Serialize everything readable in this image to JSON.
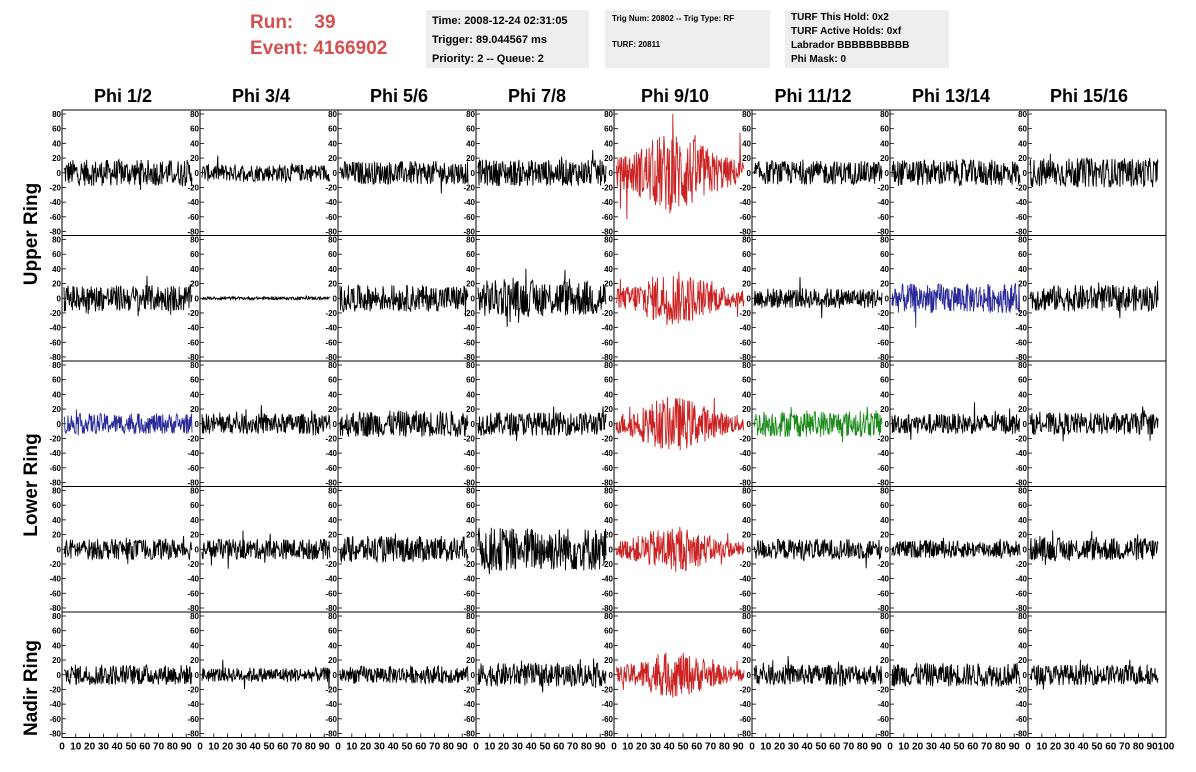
{
  "run": {
    "run_label": "Run:",
    "run_value": "39",
    "event_label": "Event:",
    "event_value": "4166902"
  },
  "info1": {
    "time": "Time: 2008-12-24 02:31:05",
    "trigger": "Trigger: 89.044567 ms",
    "priority": "Priority: 2 -- Queue: 2"
  },
  "info2": {
    "trig": "Trig Num: 20802 -- Trig Type: RF",
    "turf": "TURF: 20811"
  },
  "info3": {
    "hold": "TURF This Hold: 0x2",
    "active": "TURF Active Holds: 0xf",
    "labrador": "Labrador BBBBBBBBBB",
    "mask": "Phi Mask: 0"
  },
  "columns": [
    "Phi 1/2",
    "Phi 3/4",
    "Phi 5/6",
    "Phi 7/8",
    "Phi 9/10",
    "Phi 11/12",
    "Phi 13/14",
    "Phi 15/16"
  ],
  "rings": [
    "Upper Ring",
    "Lower Ring",
    "Nadir Ring"
  ],
  "y_ticks": [
    "80",
    "60",
    "40",
    "20",
    "0",
    "-20",
    "-40",
    "-60",
    "-80"
  ],
  "x_ticks": [
    "0",
    "10",
    "20",
    "30",
    "40",
    "50",
    "60",
    "70",
    "80",
    "90",
    "100"
  ],
  "colors": {
    "default": "#000000",
    "red": "#cc2222",
    "blue": "#2a2a9a",
    "green": "#1a8a1a",
    "accent": "#d65050"
  },
  "panel_colors": [
    [
      "default",
      "default",
      "default",
      "default",
      "red",
      "default",
      "default",
      "default"
    ],
    [
      "default",
      "default",
      "default",
      "default",
      "red",
      "default",
      "blue",
      "default"
    ],
    [
      "blue",
      "default",
      "default",
      "default",
      "red",
      "green",
      "default",
      "default"
    ],
    [
      "default",
      "default",
      "default",
      "default",
      "red",
      "default",
      "default",
      "default"
    ],
    [
      "default",
      "default",
      "default",
      "default",
      "red",
      "default",
      "default",
      "default"
    ]
  ],
  "panel_amplitudes": [
    [
      18,
      12,
      16,
      18,
      45,
      16,
      18,
      20
    ],
    [
      18,
      2,
      18,
      25,
      30,
      14,
      20,
      18
    ],
    [
      14,
      14,
      18,
      16,
      30,
      18,
      14,
      15
    ],
    [
      14,
      14,
      18,
      30,
      25,
      14,
      12,
      16
    ],
    [
      14,
      10,
      12,
      16,
      25,
      14,
      16,
      14
    ]
  ]
}
